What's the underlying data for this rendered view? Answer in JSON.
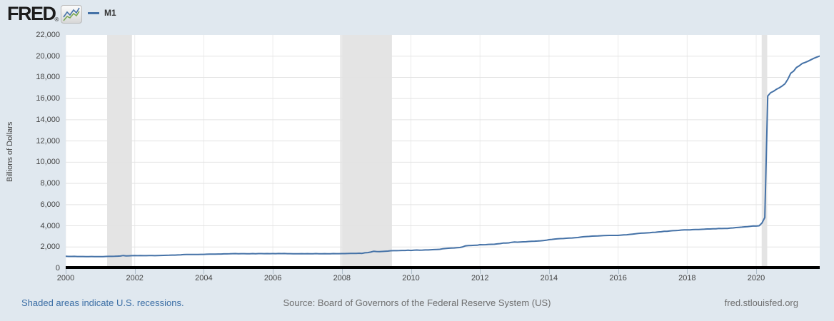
{
  "header": {
    "logo_text": "FRED",
    "registered_mark": "®",
    "legend": {
      "series_label": "M1"
    }
  },
  "footer": {
    "recession_note": "Shaded areas indicate U.S. recessions.",
    "source": "Source: Board of Governors of the Federal Reserve System (US)",
    "site": "fred.stlouisfed.org"
  },
  "colors": {
    "page_bg": "#e0e8ef",
    "plot_bg": "#ffffff",
    "series": "#4572a7",
    "icon_line_blue": "#4572a7",
    "icon_line_green": "#7aa854",
    "gridline_h": "#e3e3e3",
    "gridline_v": "#ececec",
    "recession_band": "#e4e4e4",
    "axis_line": "#000000",
    "tick_text": "#444444",
    "link": "#3b6ea5",
    "footer_text": "#6e6e6e"
  },
  "chart_data": {
    "type": "line",
    "title": "M1",
    "ylabel": "Billions of Dollars",
    "xlabel": "",
    "x_min": 2000,
    "x_max": 2021.84,
    "y_min": 0,
    "y_max": 22000,
    "grid": true,
    "legend_position": "top-left",
    "x_ticks": [
      {
        "label": "2000",
        "value": 2000
      },
      {
        "label": "2002",
        "value": 2002
      },
      {
        "label": "2004",
        "value": 2004
      },
      {
        "label": "2006",
        "value": 2006
      },
      {
        "label": "2008",
        "value": 2008
      },
      {
        "label": "2010",
        "value": 2010
      },
      {
        "label": "2012",
        "value": 2012
      },
      {
        "label": "2014",
        "value": 2014
      },
      {
        "label": "2016",
        "value": 2016
      },
      {
        "label": "2018",
        "value": 2018
      },
      {
        "label": "2020",
        "value": 2020
      }
    ],
    "y_ticks": [
      {
        "label": "0",
        "value": 0
      },
      {
        "label": "2,000",
        "value": 2000
      },
      {
        "label": "4,000",
        "value": 4000
      },
      {
        "label": "6,000",
        "value": 6000
      },
      {
        "label": "8,000",
        "value": 8000
      },
      {
        "label": "10,000",
        "value": 10000
      },
      {
        "label": "12,000",
        "value": 12000
      },
      {
        "label": "14,000",
        "value": 14000
      },
      {
        "label": "16,000",
        "value": 16000
      },
      {
        "label": "18,000",
        "value": 18000
      },
      {
        "label": "20,000",
        "value": 20000
      },
      {
        "label": "22,000",
        "value": 22000
      }
    ],
    "recessions": [
      {
        "start": 2001.2,
        "end": 2001.92
      },
      {
        "start": 2007.95,
        "end": 2009.45
      },
      {
        "start": 2020.16,
        "end": 2020.32
      }
    ],
    "series": [
      {
        "name": "M1",
        "color": "#4572a7",
        "units": "Billions of Dollars",
        "frequency": "monthly",
        "start_year": 2000,
        "values": [
          1122,
          1107,
          1110,
          1115,
          1104,
          1105,
          1103,
          1099,
          1097,
          1100,
          1095,
          1088,
          1096,
          1099,
          1109,
          1117,
          1118,
          1126,
          1140,
          1148,
          1200,
          1159,
          1170,
          1182,
          1191,
          1186,
          1193,
          1186,
          1187,
          1192,
          1200,
          1185,
          1195,
          1204,
          1210,
          1220,
          1227,
          1235,
          1240,
          1250,
          1266,
          1282,
          1289,
          1294,
          1292,
          1297,
          1298,
          1306,
          1305,
          1318,
          1330,
          1332,
          1331,
          1342,
          1340,
          1352,
          1350,
          1360,
          1375,
          1376,
          1366,
          1372,
          1373,
          1357,
          1366,
          1382,
          1367,
          1377,
          1376,
          1374,
          1376,
          1375,
          1381,
          1375,
          1384,
          1380,
          1387,
          1374,
          1370,
          1369,
          1361,
          1368,
          1371,
          1366,
          1373,
          1367,
          1369,
          1378,
          1367,
          1366,
          1370,
          1369,
          1368,
          1380,
          1371,
          1373,
          1380,
          1381,
          1388,
          1390,
          1391,
          1395,
          1411,
          1402,
          1452,
          1475,
          1518,
          1595,
          1576,
          1560,
          1578,
          1604,
          1612,
          1651,
          1656,
          1658,
          1665,
          1678,
          1674,
          1696,
          1677,
          1700,
          1713,
          1700,
          1709,
          1723,
          1719,
          1745,
          1756,
          1770,
          1786,
          1832,
          1856,
          1882,
          1894,
          1908,
          1929,
          1948,
          2012,
          2114,
          2136,
          2146,
          2158,
          2165,
          2219,
          2215,
          2220,
          2247,
          2252,
          2261,
          2297,
          2319,
          2368,
          2373,
          2391,
          2445,
          2466,
          2453,
          2478,
          2489,
          2495,
          2520,
          2541,
          2552,
          2561,
          2581,
          2613,
          2634,
          2688,
          2717,
          2753,
          2769,
          2789,
          2801,
          2829,
          2848,
          2853,
          2874,
          2895,
          2936,
          2968,
          2987,
          3002,
          3025,
          3034,
          3041,
          3058,
          3072,
          3085,
          3097,
          3096,
          3095,
          3097,
          3120,
          3139,
          3154,
          3187,
          3213,
          3243,
          3277,
          3302,
          3318,
          3333,
          3342,
          3387,
          3388,
          3426,
          3437,
          3478,
          3488,
          3514,
          3540,
          3549,
          3567,
          3600,
          3614,
          3615,
          3621,
          3639,
          3649,
          3645,
          3669,
          3680,
          3697,
          3701,
          3717,
          3717,
          3745,
          3744,
          3746,
          3750,
          3779,
          3798,
          3833,
          3854,
          3872,
          3902,
          3924,
          3953,
          3983,
          3978,
          4004,
          4262,
          4784,
          16242,
          16550,
          16686,
          16868,
          17017,
          17184,
          17391,
          17828,
          18390,
          18586,
          18935,
          19102,
          19306,
          19402,
          19524,
          19662,
          19790,
          19900,
          20000
        ]
      }
    ]
  }
}
